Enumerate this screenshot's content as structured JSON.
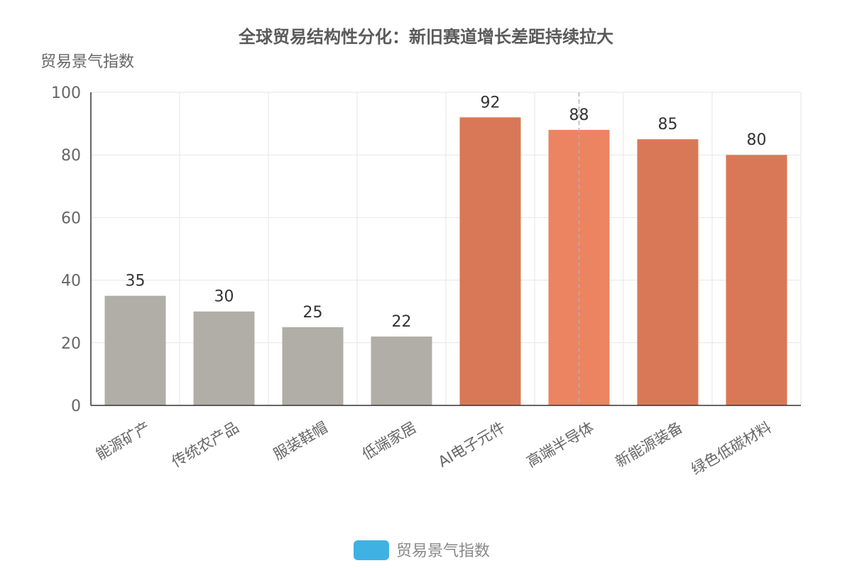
{
  "chart_data": {
    "type": "bar",
    "title": "全球贸易结构性分化：新旧赛道增长差距持续拉大",
    "ylabel": "贸易景气指数",
    "xlabel": "",
    "categories": [
      "能源矿产",
      "传统农产品",
      "服装鞋帽",
      "低端家居",
      "AI电子元件",
      "高端半导体",
      "新能源装备",
      "绿色低碳材料"
    ],
    "series": [
      {
        "name": "贸易景气指数",
        "values": [
          35,
          30,
          25,
          22,
          92,
          88,
          85,
          80
        ]
      }
    ],
    "ylim": [
      0,
      100
    ],
    "yticks": [
      0,
      20,
      40,
      60,
      80,
      100
    ],
    "grid": true,
    "legend": "bottom-center",
    "highlight_category": "高端半导体",
    "colors": {
      "old_track": "#b0aea6",
      "new_track": "#d97856",
      "highlight": "#ec8462",
      "legend_swatch": "#3fb1e3"
    }
  }
}
